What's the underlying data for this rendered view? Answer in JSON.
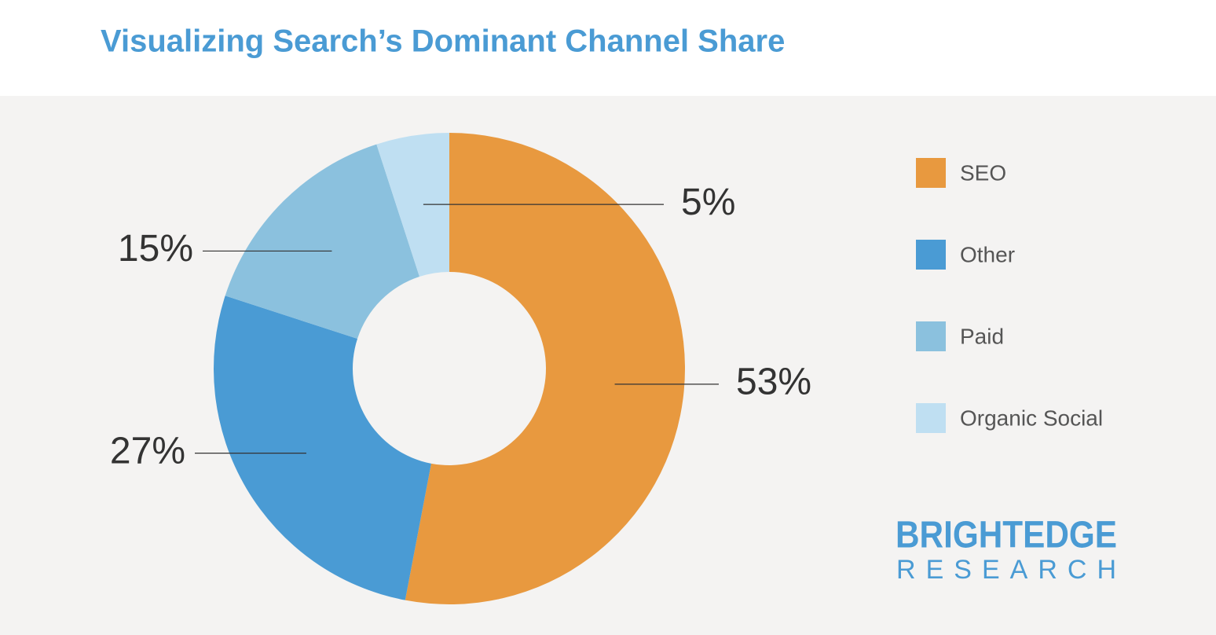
{
  "chart_data": {
    "type": "donut",
    "title": "Visualizing Search’s Dominant Channel Share",
    "categories": [
      "SEO",
      "Other",
      "Paid",
      "Organic Social"
    ],
    "values": [
      53,
      27,
      15,
      5
    ],
    "value_labels": [
      "53%",
      "27%",
      "15%",
      "5%"
    ],
    "colors": [
      "#e8993f",
      "#4a9bd4",
      "#8bc1de",
      "#bfdff2"
    ],
    "legend": "right"
  },
  "branding": {
    "name": "BRIGHTEDGE",
    "subtitle": "RESEARCH"
  }
}
